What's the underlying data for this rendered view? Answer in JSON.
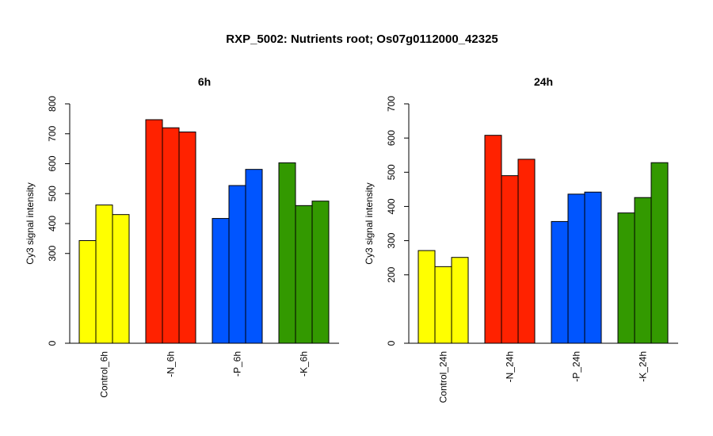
{
  "title": "RXP_5002: Nutrients root; Os07g0112000_42325",
  "chart_data": [
    {
      "type": "bar",
      "title": "6h",
      "ylabel": "Cy3 signal intensity",
      "xlabel": "",
      "ylim": [
        0,
        800
      ],
      "yticks": [
        0,
        300,
        400,
        500,
        600,
        700,
        800
      ],
      "grid": false,
      "groups": [
        {
          "name": "Control_6h",
          "color": "#ffff00",
          "values": [
            343,
            462,
            430
          ]
        },
        {
          "name": "-N_6h",
          "color": "#ff2200",
          "values": [
            747,
            720,
            706
          ]
        },
        {
          "name": "-P_6h",
          "color": "#0055ff",
          "values": [
            417,
            527,
            581
          ]
        },
        {
          "name": "-K_6h",
          "color": "#339900",
          "values": [
            603,
            460,
            475
          ]
        }
      ]
    },
    {
      "type": "bar",
      "title": "24h",
      "ylabel": "Cy3 signal intensity",
      "xlabel": "",
      "ylim": [
        0,
        700
      ],
      "yticks": [
        0,
        200,
        300,
        400,
        500,
        600,
        700
      ],
      "grid": false,
      "groups": [
        {
          "name": "Control_24h",
          "color": "#ffff00",
          "values": [
            271,
            224,
            251
          ]
        },
        {
          "name": "-N_24h",
          "color": "#ff2200",
          "values": [
            608,
            490,
            538
          ]
        },
        {
          "name": "-P_24h",
          "color": "#0055ff",
          "values": [
            356,
            436,
            442
          ]
        },
        {
          "name": "-K_24h",
          "color": "#339900",
          "values": [
            381,
            426,
            528
          ]
        }
      ]
    }
  ]
}
